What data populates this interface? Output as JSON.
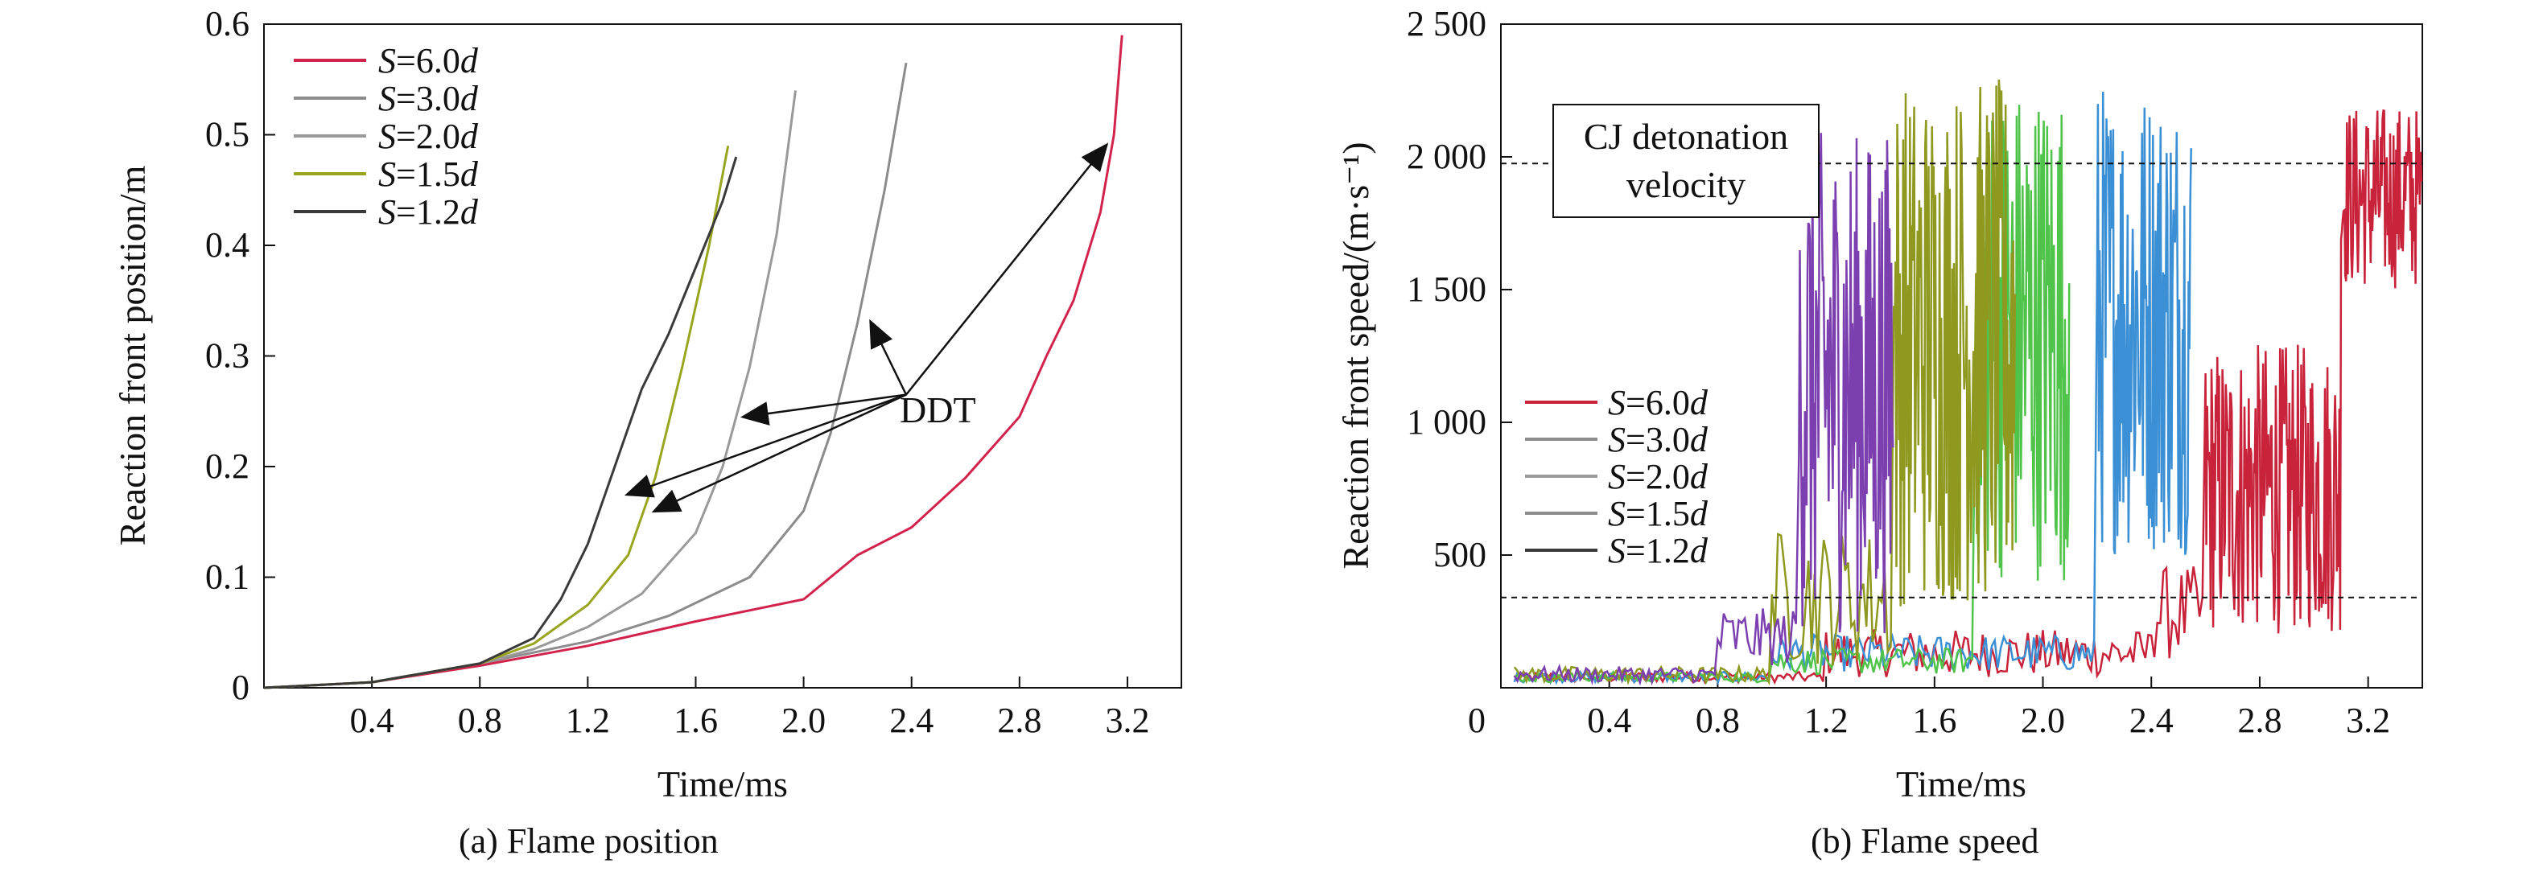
{
  "chart_data": [
    {
      "type": "line",
      "caption": "(a) Flame position",
      "xlabel": "Time/ms",
      "ylabel": "Reaction front position/m",
      "xlim": [
        0,
        3.4
      ],
      "ylim": [
        0,
        0.6
      ],
      "xticks": [
        "0.4",
        "0.8",
        "1.2",
        "1.6",
        "2.0",
        "2.4",
        "2.8",
        "3.2"
      ],
      "yticks": [
        "0",
        "0.1",
        "0.2",
        "0.3",
        "0.4",
        "0.5",
        "0.6"
      ],
      "legend_position": "top-left",
      "annotation": "DDT",
      "series": [
        {
          "name": "S=6.0d",
          "color": "#d2234c",
          "x": [
            0.0,
            0.4,
            0.8,
            1.2,
            1.6,
            2.0,
            2.2,
            2.4,
            2.6,
            2.8,
            2.9,
            3.0,
            3.1,
            3.15,
            3.18
          ],
          "y": [
            0.0,
            0.005,
            0.02,
            0.038,
            0.06,
            0.08,
            0.12,
            0.145,
            0.19,
            0.245,
            0.3,
            0.35,
            0.43,
            0.5,
            0.59
          ]
        },
        {
          "name": "S=3.0d",
          "color": "#8c8c8c",
          "x": [
            0.0,
            0.4,
            0.8,
            1.2,
            1.5,
            1.8,
            2.0,
            2.1,
            2.2,
            2.3,
            2.38
          ],
          "y": [
            0.0,
            0.005,
            0.022,
            0.042,
            0.065,
            0.1,
            0.16,
            0.23,
            0.33,
            0.45,
            0.565
          ]
        },
        {
          "name": "S=2.0d",
          "color": "#9a9a9a",
          "x": [
            0.0,
            0.4,
            0.8,
            1.0,
            1.2,
            1.4,
            1.6,
            1.7,
            1.8,
            1.9,
            1.97
          ],
          "y": [
            0.0,
            0.005,
            0.022,
            0.035,
            0.055,
            0.085,
            0.14,
            0.2,
            0.29,
            0.41,
            0.54
          ]
        },
        {
          "name": "S=1.5d",
          "color": "#9aa51f",
          "x": [
            0.0,
            0.4,
            0.8,
            1.0,
            1.2,
            1.35,
            1.45,
            1.55,
            1.65,
            1.72
          ],
          "y": [
            0.0,
            0.005,
            0.022,
            0.04,
            0.075,
            0.12,
            0.19,
            0.29,
            0.4,
            0.49
          ]
        },
        {
          "name": "S=1.2d",
          "color": "#3a3a3a",
          "x": [
            0.0,
            0.4,
            0.8,
            1.0,
            1.1,
            1.2,
            1.3,
            1.4,
            1.5,
            1.6,
            1.7,
            1.75
          ],
          "y": [
            0.0,
            0.005,
            0.022,
            0.045,
            0.08,
            0.13,
            0.2,
            0.27,
            0.32,
            0.38,
            0.44,
            0.48
          ]
        }
      ]
    },
    {
      "type": "line",
      "caption": "(b) Flame speed",
      "xlabel": "Time/ms",
      "ylabel": "Reaction front speed/(m·s⁻¹)",
      "xlim": [
        0,
        3.4
      ],
      "ylim": [
        0,
        2500
      ],
      "xticks": [
        "0",
        "0.4",
        "0.8",
        "1.2",
        "1.6",
        "2.0",
        "2.4",
        "2.8",
        "3.2"
      ],
      "yticks": [
        "500",
        "1 000",
        "1 500",
        "2 000",
        "2 500"
      ],
      "reference_lines": [
        1975,
        340
      ],
      "annotation": [
        "CJ detonation",
        "velocity"
      ],
      "legend_position": "center-left",
      "series": [
        {
          "name": "S=6.0d",
          "color": "#c8233a",
          "x_range": [
            0.05,
            3.4
          ],
          "speed": "pulsing, rises near 2000 after 3.1 ms"
        },
        {
          "name": "S=3.0d",
          "color": "#3b8fd4",
          "x_range": [
            0.05,
            2.55
          ],
          "speed": "oscillating 400-2300 after 2.2 ms"
        },
        {
          "name": "S=2.0d",
          "color": "#4fc34a",
          "x_range": [
            0.05,
            2.1
          ],
          "speed": "oscillating 300-2300 after 1.75 ms"
        },
        {
          "name": "S=1.5d",
          "color": "#8f991f",
          "x_range": [
            0.05,
            1.9
          ],
          "speed": "oscillating 300-2300 after 1.45 ms"
        },
        {
          "name": "S=1.2d",
          "color": "#7b3fb0",
          "x_range": [
            0.05,
            1.45
          ],
          "speed": "oscillating 200-2100 after 1.1 ms"
        }
      ]
    }
  ]
}
